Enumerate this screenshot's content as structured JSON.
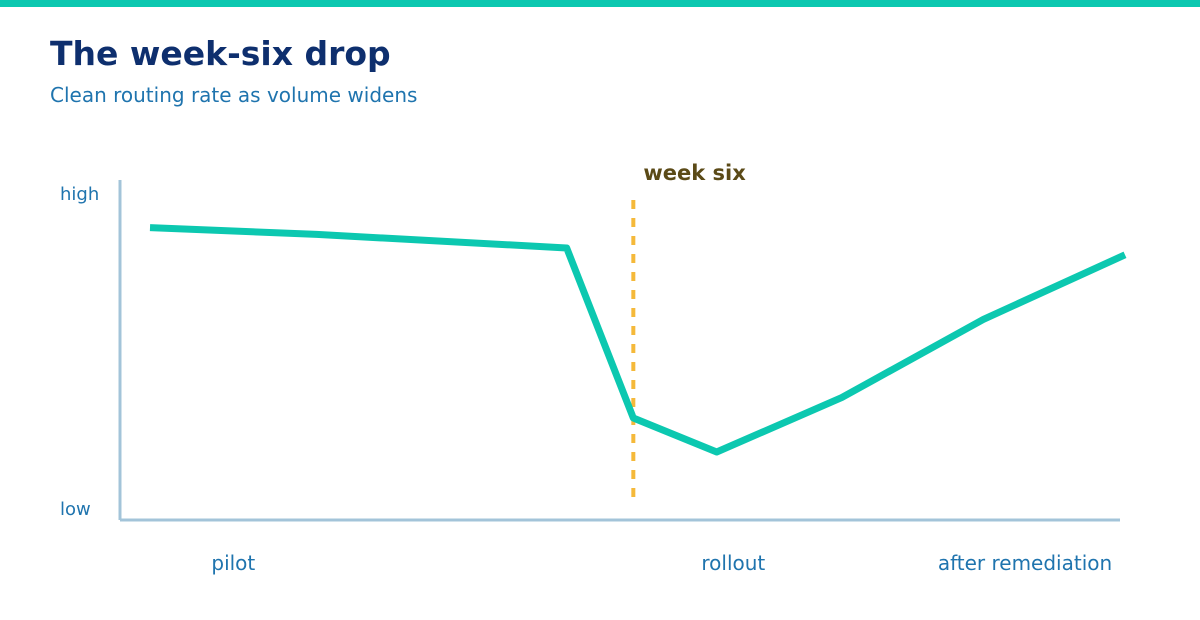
{
  "colors": {
    "accent": "#0cc8b0",
    "title": "#0e2f6e",
    "text": "#1f74ae",
    "axis": "#a3c4d9",
    "marker": "#f5b93a",
    "annotation": "#5b4a17"
  },
  "header": {
    "title": "The week-six drop",
    "subtitle": "Clean routing rate as volume widens"
  },
  "chart_data": {
    "type": "line",
    "title": "The week-six drop",
    "subtitle": "Clean routing rate as volume widens",
    "xlabel": "",
    "ylabel": "",
    "y_axis_labels": {
      "high": "high",
      "low": "low"
    },
    "categories": [
      "pilot",
      "rollout",
      "after remediation"
    ],
    "x_range": [
      0,
      12
    ],
    "y_range": [
      0,
      1
    ],
    "series": [
      {
        "x": [
          0,
          2,
          5,
          5.8,
          6.8,
          8.3,
          10.0,
          11.7
        ],
        "values": [
          0.86,
          0.84,
          0.8,
          0.3,
          0.2,
          0.36,
          0.59,
          0.78
        ]
      }
    ],
    "category_positions": [
      1,
      7,
      10.5
    ],
    "annotation": {
      "x": 5.8,
      "label": "week six"
    },
    "grid": false,
    "legend": "none"
  }
}
